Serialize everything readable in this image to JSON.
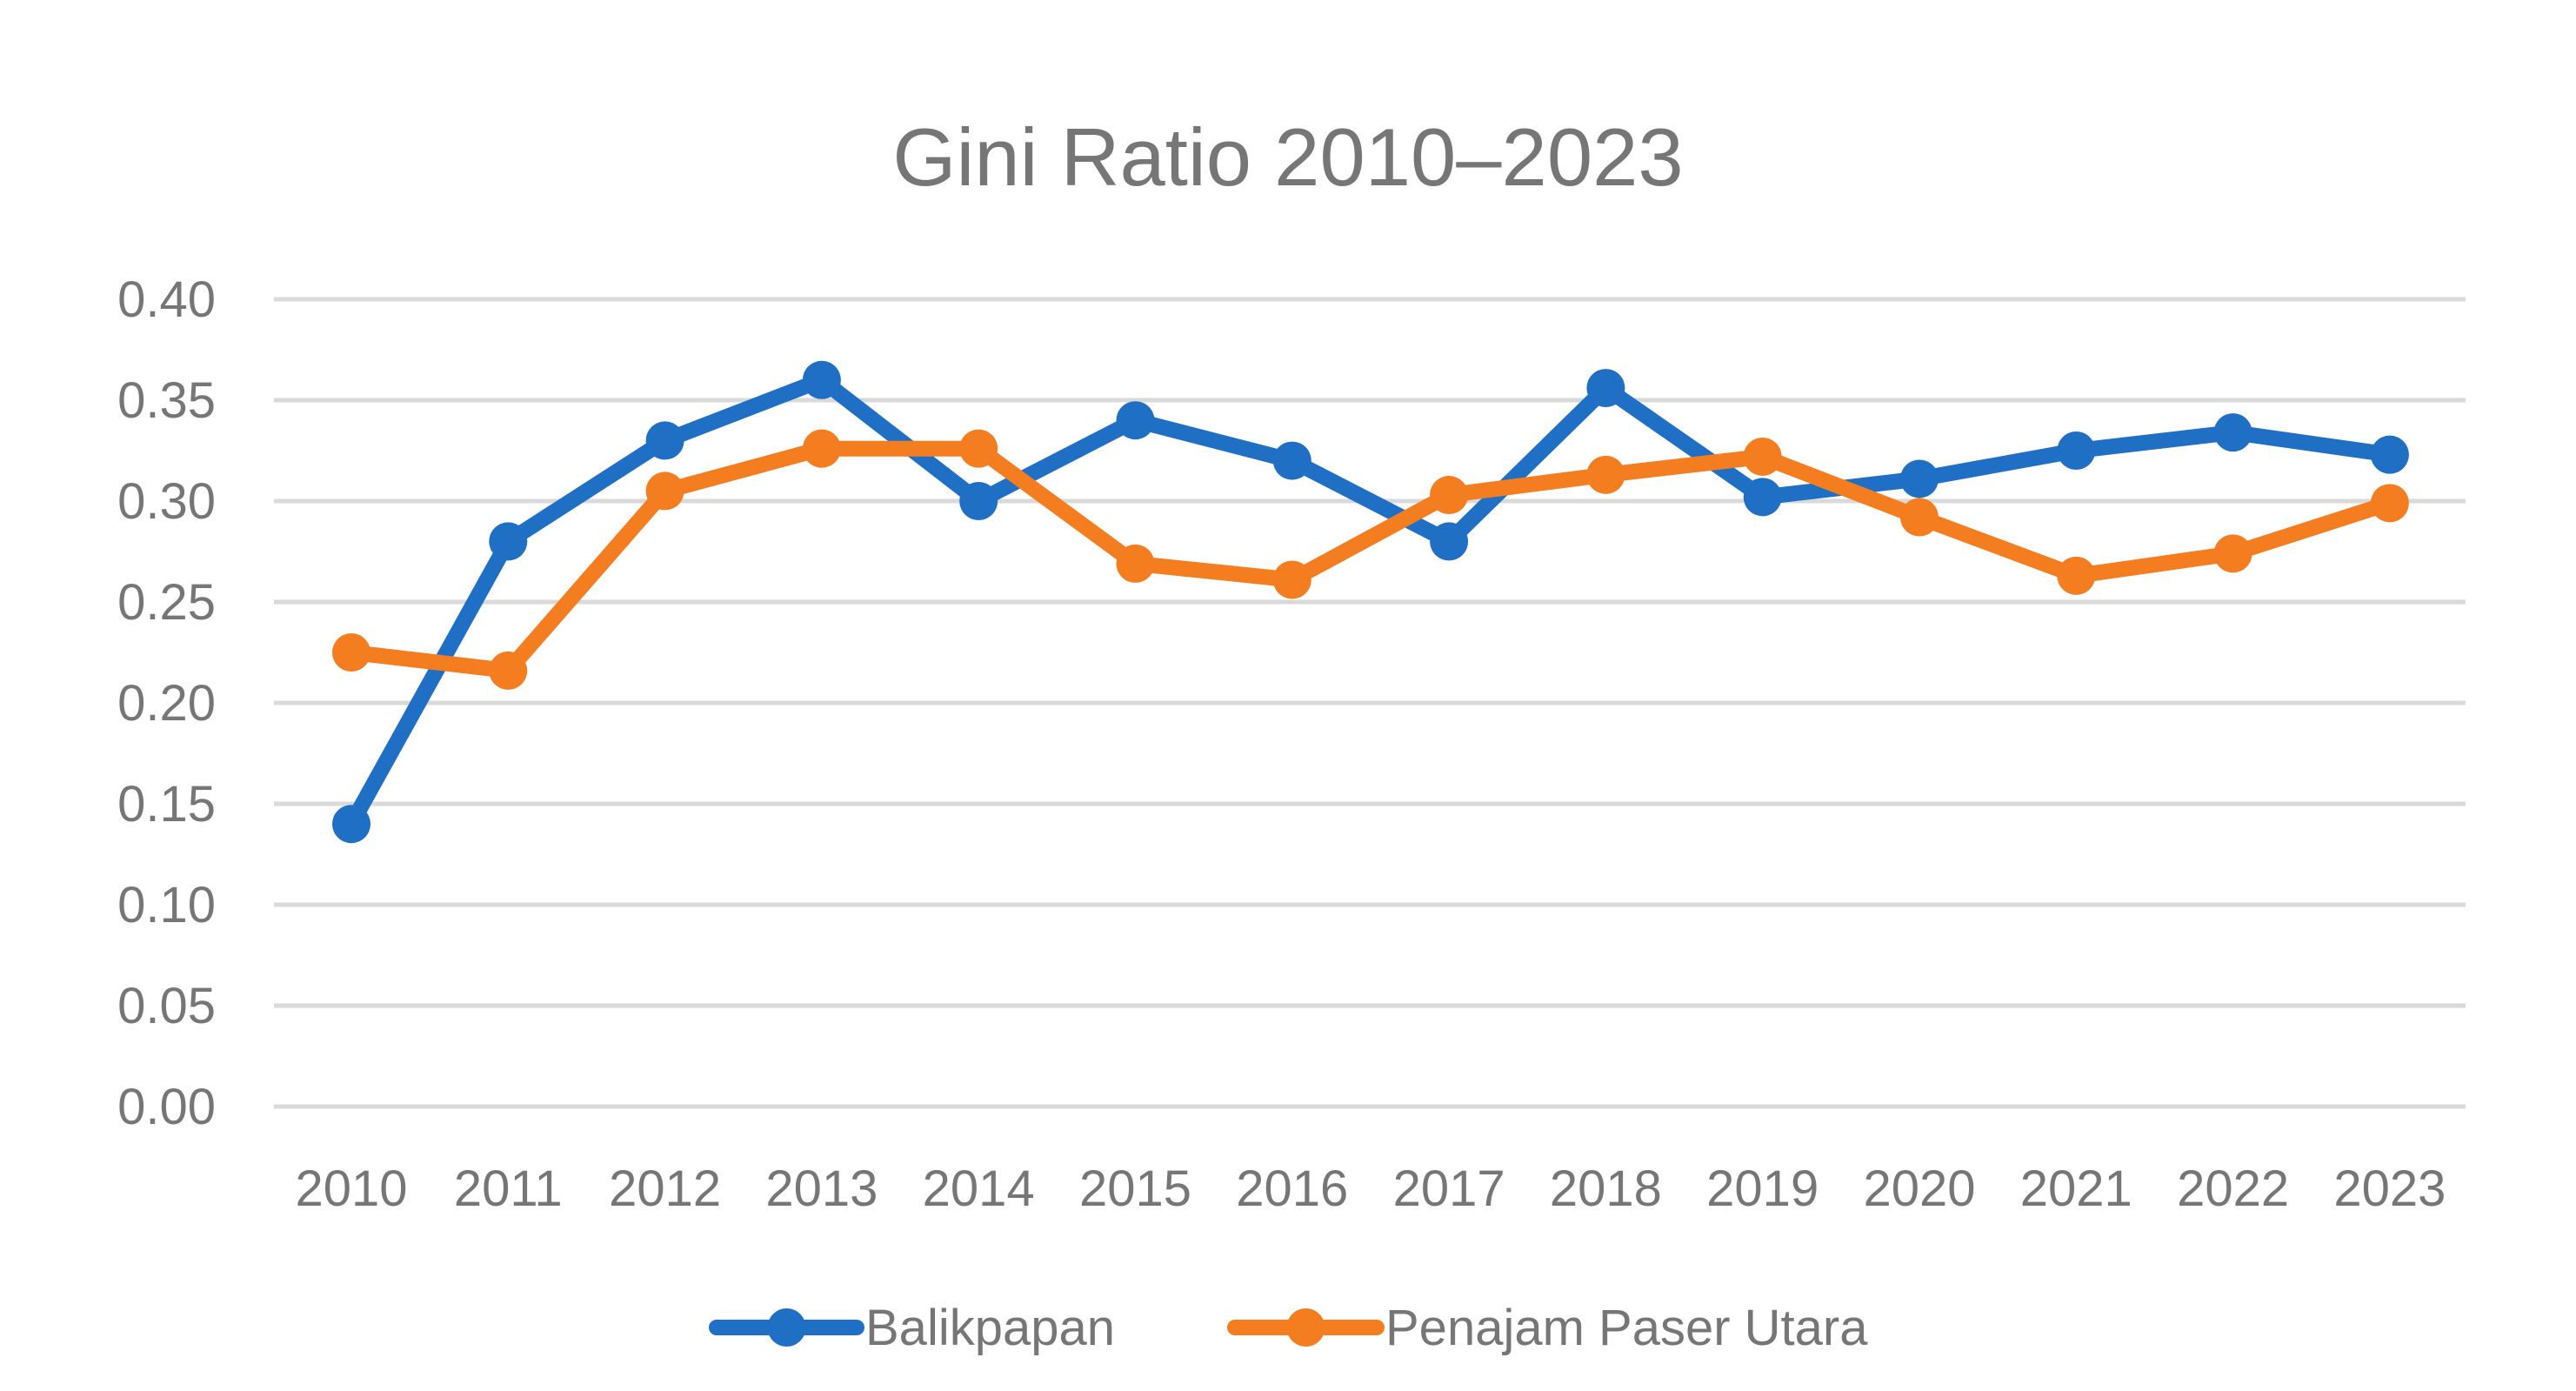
{
  "chart_data": {
    "type": "line",
    "title": "Gini Ratio 2010–2023",
    "xlabel": "",
    "ylabel": "",
    "categories": [
      "2010",
      "2011",
      "2012",
      "2013",
      "2014",
      "2015",
      "2016",
      "2017",
      "2018",
      "2019",
      "2020",
      "2021",
      "2022",
      "2023"
    ],
    "ylim": [
      0,
      0.4
    ],
    "yticks": [
      "0.00",
      "0.05",
      "0.10",
      "0.15",
      "0.20",
      "0.25",
      "0.30",
      "0.35",
      "0.40"
    ],
    "grid": true,
    "legend_position": "bottom",
    "series": [
      {
        "name": "Balikpapan",
        "color": "#1f6fc5",
        "values": [
          0.14,
          0.28,
          0.33,
          0.36,
          0.3,
          0.34,
          0.32,
          0.28,
          0.356,
          0.302,
          0.311,
          0.325,
          0.334,
          0.323
        ]
      },
      {
        "name": "Penajam Paser Utara",
        "color": "#f47d20",
        "values": [
          0.225,
          0.216,
          0.305,
          0.326,
          0.326,
          0.269,
          0.261,
          0.303,
          0.313,
          0.322,
          0.292,
          0.263,
          0.274,
          0.299
        ]
      }
    ]
  }
}
